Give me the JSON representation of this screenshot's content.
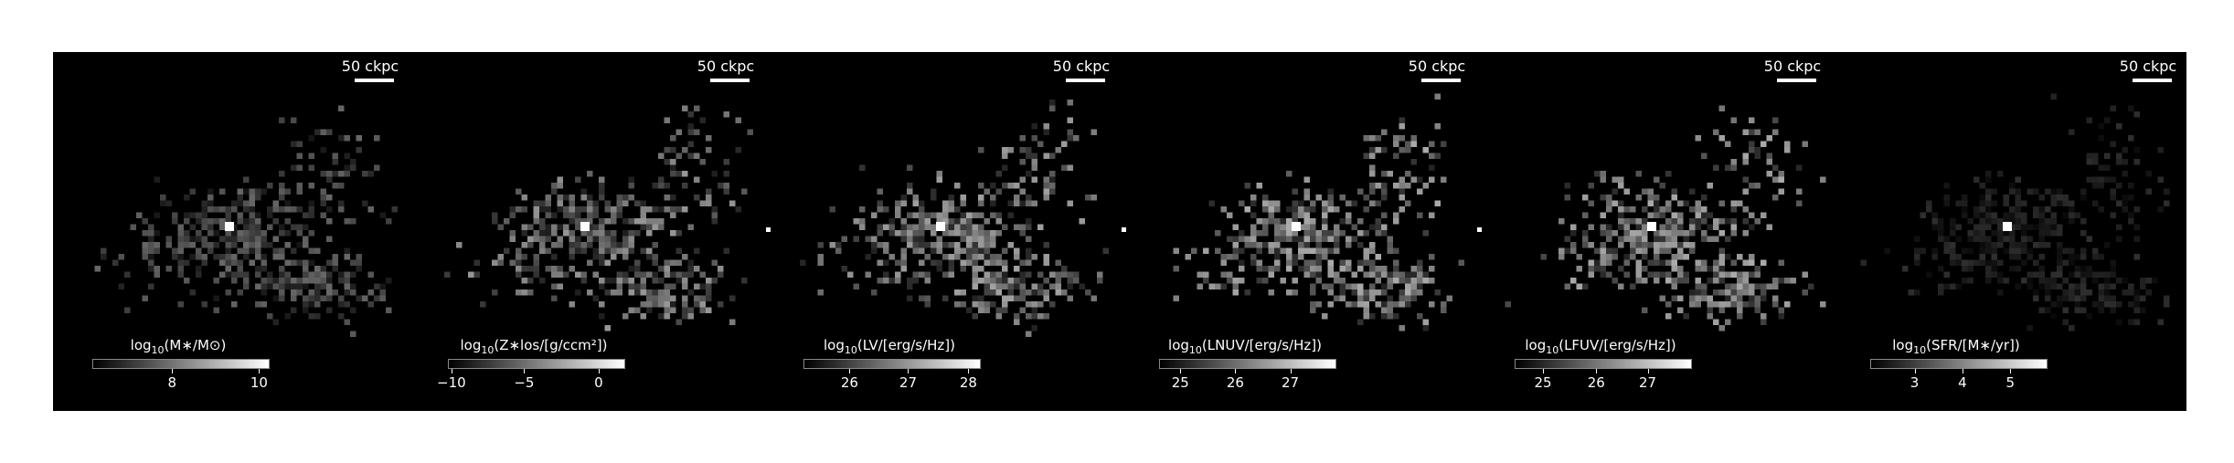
{
  "scale_bar_label": "50 ckpc",
  "panels": [
    {
      "title_prefix": "log",
      "title_sub": "10",
      "title_body": "(M∗/M⊙)",
      "ticks": [
        {
          "label": "8",
          "frac": 0.45
        },
        {
          "label": "10",
          "frac": 0.94
        }
      ],
      "brightness": 0.55,
      "seed": 3
    },
    {
      "title_prefix": "log",
      "title_sub": "10",
      "title_body": "(Z∗los/[g/ccm²])",
      "ticks": [
        {
          "label": "−10",
          "frac": 0.02
        },
        {
          "label": "−5",
          "frac": 0.43
        },
        {
          "label": "0",
          "frac": 0.85
        }
      ],
      "brightness": 0.8,
      "seed": 7
    },
    {
      "title_prefix": "log",
      "title_sub": "10",
      "title_body": "(LV/[erg/s/Hz])",
      "ticks": [
        {
          "label": "26",
          "frac": 0.26
        },
        {
          "label": "27",
          "frac": 0.59
        },
        {
          "label": "28",
          "frac": 0.93
        }
      ],
      "brightness": 0.85,
      "seed": 11
    },
    {
      "title_prefix": "log",
      "title_sub": "10",
      "title_body": "(LNUV/[erg/s/Hz])",
      "ticks": [
        {
          "label": "25",
          "frac": 0.12
        },
        {
          "label": "26",
          "frac": 0.43
        },
        {
          "label": "27",
          "frac": 0.74
        }
      ],
      "brightness": 0.9,
      "seed": 13
    },
    {
      "title_prefix": "log",
      "title_sub": "10",
      "title_body": "(LFUV/[erg/s/Hz])",
      "ticks": [
        {
          "label": "25",
          "frac": 0.16
        },
        {
          "label": "26",
          "frac": 0.46
        },
        {
          "label": "27",
          "frac": 0.75
        }
      ],
      "brightness": 0.9,
      "seed": 17
    },
    {
      "title_prefix": "log",
      "title_sub": "10",
      "title_body": "(SFR/[M∗/yr])",
      "ticks": [
        {
          "label": "3",
          "frac": 0.25
        },
        {
          "label": "4",
          "frac": 0.52
        },
        {
          "label": "5",
          "frac": 0.79
        }
      ],
      "brightness": 0.25,
      "seed": 19
    }
  ]
}
